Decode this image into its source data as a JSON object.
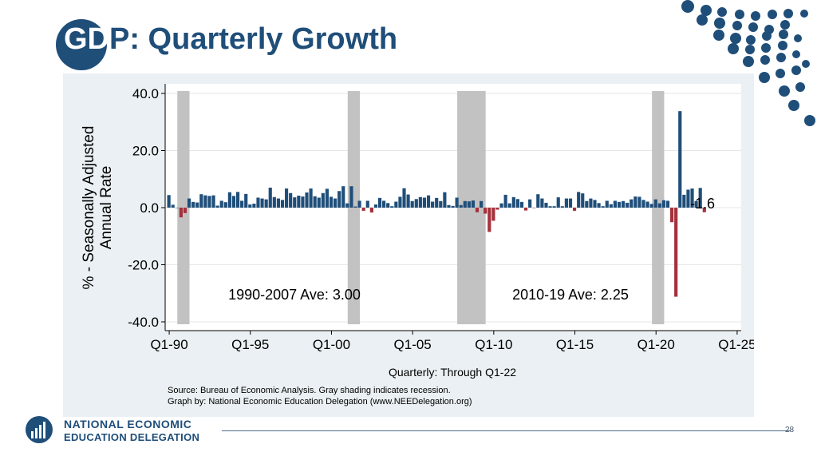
{
  "slide": {
    "title_gd": "GD",
    "title_rest": "P: Quarterly Growth",
    "page_number": "28",
    "org_line1": "NATIONAL ECONOMIC",
    "org_line2": "EDUCATION DELEGATION"
  },
  "colors": {
    "brand": "#1f4e79",
    "positive_bar": "#1f4e79",
    "negative_bar": "#a4313c",
    "recession_shade": "#c2c2c2",
    "panel_bg": "#eaf0f3"
  },
  "chart_data": {
    "type": "bar",
    "ylabel_line1": "% - Seasonally Adjusted",
    "ylabel_line2": "Annual Rate",
    "xlabel": "Quarterly: Through Q1-22",
    "ylim": [
      -40,
      40
    ],
    "xlim": [
      1989.75,
      2025.25
    ],
    "y_ticks": [
      {
        "value": 40,
        "label": "40.0"
      },
      {
        "value": 20,
        "label": "20.0"
      },
      {
        "value": 0,
        "label": "0.0"
      },
      {
        "value": -20,
        "label": "-20.0"
      },
      {
        "value": -40,
        "label": "-40.0"
      }
    ],
    "x_ticks": [
      {
        "value": 1990,
        "label": "Q1-90"
      },
      {
        "value": 1995,
        "label": "Q1-95"
      },
      {
        "value": 2000,
        "label": "Q1-00"
      },
      {
        "value": 2005,
        "label": "Q1-05"
      },
      {
        "value": 2010,
        "label": "Q1-10"
      },
      {
        "value": 2015,
        "label": "Q1-15"
      },
      {
        "value": 2020,
        "label": "Q1-20"
      },
      {
        "value": 2025,
        "label": "Q1-25"
      }
    ],
    "recessions": [
      {
        "start": 1990.5,
        "end": 1991.25
      },
      {
        "start": 2001.0,
        "end": 2001.75
      },
      {
        "start": 2007.75,
        "end": 2009.5
      },
      {
        "start": 2019.75,
        "end": 2020.5
      }
    ],
    "annotations": {
      "ave_1990_2007": "1990-2007 Ave: 3.00",
      "ave_2010_19": "2010-19 Ave: 2.25",
      "last_value": "-1.6"
    },
    "source_line1": "Source: Bureau of Economic Analysis. Gray shading indicates recession.",
    "source_line2": "Graph by: National Economic Education Delegation (www.NEEDelegation.org)",
    "start_quarter": 1990.0,
    "values": [
      4.4,
      1.0,
      0.0,
      -3.4,
      -1.9,
      3.2,
      2.0,
      1.8,
      4.7,
      4.3,
      4.1,
      4.3,
      0.7,
      2.4,
      1.9,
      5.4,
      4.1,
      5.5,
      2.4,
      4.8,
      1.1,
      1.4,
      3.5,
      3.2,
      2.9,
      7.0,
      3.7,
      3.2,
      2.7,
      6.7,
      5.1,
      3.6,
      4.2,
      3.9,
      5.3,
      6.7,
      4.0,
      3.5,
      5.1,
      6.6,
      3.8,
      3.2,
      5.8,
      7.5,
      1.5,
      7.5,
      0.4,
      2.4,
      -1.1,
      2.4,
      -1.7,
      1.1,
      3.4,
      2.4,
      1.6,
      0.5,
      2.1,
      3.8,
      6.8,
      4.6,
      2.3,
      3.0,
      3.7,
      3.5,
      4.3,
      2.1,
      3.4,
      2.3,
      5.4,
      0.9,
      0.6,
      3.5,
      0.9,
      2.3,
      2.2,
      2.5,
      -1.6,
      2.3,
      -2.1,
      -8.5,
      -4.6,
      -0.7,
      1.5,
      4.5,
      1.5,
      3.7,
      3.0,
      2.0,
      -1.0,
      2.9,
      -0.1,
      4.7,
      3.2,
      1.7,
      0.5,
      0.5,
      3.6,
      0.5,
      3.2,
      3.2,
      -1.1,
      5.5,
      5.0,
      2.3,
      3.2,
      2.7,
      1.6,
      0.5,
      2.4,
      1.2,
      2.4,
      2.0,
      2.3,
      1.7,
      2.9,
      3.9,
      3.8,
      2.7,
      2.1,
      1.3,
      2.9,
      1.5,
      2.6,
      2.4,
      -5.1,
      -31.2,
      33.8,
      4.5,
      6.3,
      6.7,
      2.3,
      6.9,
      -1.6
    ]
  }
}
